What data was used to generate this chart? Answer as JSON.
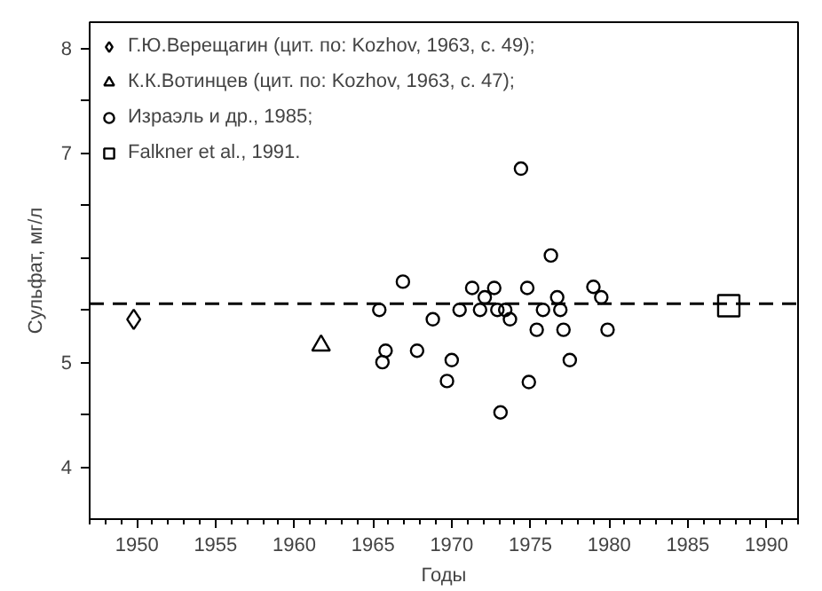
{
  "chart_data": {
    "type": "scatter",
    "xlabel": "Годы",
    "ylabel": "Сульфат, мг/л",
    "xlim": [
      1947,
      1992
    ],
    "xticks": [
      1950,
      1955,
      1960,
      1965,
      1970,
      1975,
      1980,
      1985,
      1990
    ],
    "ylim": [
      3.5,
      8.25
    ],
    "yticks": [
      4,
      {
        "value": 4.5,
        "label": null
      },
      5,
      {
        "value": 5.5,
        "label": null
      },
      {
        "value": 6,
        "label": null
      },
      {
        "value": 6.5,
        "label": null
      },
      7,
      {
        "value": 7.5,
        "label": null
      },
      8
    ],
    "grid": false,
    "legend": "top left",
    "series": [
      {
        "name": "Г.Ю.Верещагин (цит. по: Kozhov, 1963, с. 49);",
        "color": "#000000",
        "marker": "diamond",
        "x": [
          1949.8
        ],
        "values": [
          5.41
        ]
      },
      {
        "name": "К.К.Вотинцев (цит. по: Kozhov, 1963, с. 47);",
        "color": "#000000",
        "marker": "triangle",
        "x": [
          1961.7
        ],
        "values": [
          5.16
        ]
      },
      {
        "name": "Израэль и др., 1985;",
        "color": "#000000",
        "marker": "circle",
        "x": [
          1965.4,
          1965.6,
          1965.8,
          1966.9,
          1967.8,
          1968.8,
          1969.7,
          1970.0,
          1970.5,
          1971.3,
          1971.8,
          1972.1,
          1972.7,
          1972.9,
          1973.1,
          1973.4,
          1973.7,
          1974.4,
          1974.8,
          1974.9,
          1975.4,
          1975.8,
          1976.3,
          1976.7,
          1976.9,
          1977.1,
          1977.5,
          1979.0,
          1979.5,
          1979.9
        ],
        "values": [
          5.5,
          5.0,
          5.11,
          5.77,
          5.11,
          5.41,
          4.82,
          5.02,
          5.5,
          5.71,
          5.5,
          5.62,
          5.71,
          5.5,
          4.52,
          5.5,
          5.41,
          6.85,
          5.71,
          4.81,
          5.31,
          5.5,
          6.02,
          5.62,
          5.5,
          5.31,
          5.02,
          5.72,
          5.62,
          5.31
        ]
      },
      {
        "name": "Falkner et al., 1991.",
        "color": "#000000",
        "marker": "square",
        "x": [
          1987.6
        ],
        "values": [
          5.54
        ]
      }
    ],
    "ref_lines": [
      {
        "axis": "y",
        "value": 5.56,
        "label": null,
        "color": "#000000",
        "line_style": "dashed"
      }
    ]
  }
}
